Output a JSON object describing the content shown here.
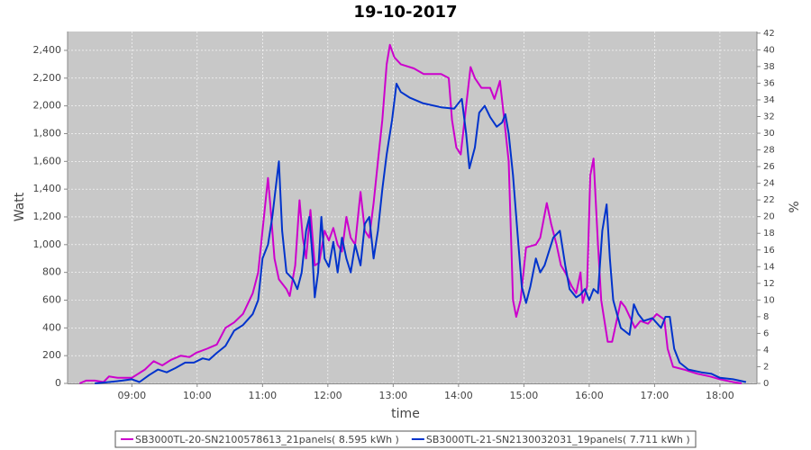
{
  "chart_data": {
    "type": "line",
    "title": "19-10-2017",
    "x_label": "time",
    "y_label": "Watt",
    "y2_label": "%",
    "xlim": [
      481,
      1114
    ],
    "xticks": [
      {
        "value": 540,
        "label": "09:00"
      },
      {
        "value": 600,
        "label": "10:00"
      },
      {
        "value": 660,
        "label": "11:00"
      },
      {
        "value": 720,
        "label": "12:00"
      },
      {
        "value": 780,
        "label": "13:00"
      },
      {
        "value": 840,
        "label": "14:00"
      },
      {
        "value": 900,
        "label": "15:00"
      },
      {
        "value": 960,
        "label": "16:00"
      },
      {
        "value": 1020,
        "label": "17:00"
      },
      {
        "value": 1080,
        "label": "18:00"
      }
    ],
    "ylim": [
      0,
      2536
    ],
    "yticks": [
      0,
      200,
      400,
      600,
      800,
      {
        "value": 1000,
        "label": "1,000"
      },
      {
        "value": 1200,
        "label": "1,200"
      },
      {
        "value": 1400,
        "label": "1,400"
      },
      {
        "value": 1600,
        "label": "1,600"
      },
      {
        "value": 1800,
        "label": "1,800"
      },
      {
        "value": 2000,
        "label": "2,000"
      },
      {
        "value": 2200,
        "label": "2,200"
      },
      {
        "value": 2400,
        "label": "2,400"
      }
    ],
    "y2lim": [
      0,
      42.2
    ],
    "y2ticks": [
      0,
      2,
      4,
      6,
      8,
      10,
      12,
      14,
      16,
      18,
      20,
      22,
      24,
      26,
      28,
      30,
      32,
      34,
      36,
      38,
      40,
      42
    ],
    "grid": true,
    "series": [
      {
        "name": "SB3000TL-20-SN2100578613_21panels( 8.595 kWh )",
        "color": "#cc00cc",
        "x": [
          492,
          498,
          506,
          514,
          519,
          527,
          540,
          552,
          560,
          568,
          576,
          585,
          593,
          599,
          609,
          618,
          626,
          634,
          642,
          651,
          656,
          660,
          665,
          667,
          671,
          675,
          682,
          685,
          690,
          694,
          697,
          700,
          704,
          708,
          712,
          717,
          721,
          725,
          729,
          733,
          737,
          741,
          745,
          750,
          754,
          758,
          762,
          766,
          770,
          774,
          777,
          781,
          787,
          799,
          808,
          824,
          831,
          834,
          838,
          842,
          847,
          851,
          855,
          861,
          869,
          873,
          878,
          882,
          886,
          890,
          893,
          897,
          902,
          911,
          915,
          921,
          925,
          930,
          934,
          938,
          944,
          948,
          952,
          954,
          958,
          961,
          964,
          968,
          971,
          977,
          981,
          989,
          993,
          1002,
          1007,
          1014,
          1022,
          1029,
          1032,
          1037,
          1047,
          1059,
          1071,
          1080,
          1092,
          1100
        ],
        "values": [
          0,
          20,
          20,
          10,
          50,
          40,
          40,
          100,
          160,
          130,
          170,
          200,
          190,
          220,
          250,
          280,
          400,
          440,
          500,
          650,
          800,
          1100,
          1480,
          1300,
          900,
          750,
          680,
          630,
          850,
          1320,
          1050,
          900,
          1250,
          850,
          870,
          1100,
          1030,
          1120,
          1000,
          950,
          1200,
          1050,
          1000,
          1380,
          1100,
          1050,
          1300,
          1600,
          1900,
          2300,
          2440,
          2350,
          2300,
          2270,
          2230,
          2230,
          2200,
          1900,
          1700,
          1650,
          2000,
          2280,
          2200,
          2130,
          2130,
          2050,
          2180,
          1900,
          1600,
          600,
          480,
          600,
          980,
          1000,
          1050,
          1300,
          1150,
          1000,
          850,
          800,
          700,
          650,
          800,
          580,
          700,
          1500,
          1620,
          1000,
          600,
          300,
          300,
          590,
          550,
          400,
          450,
          430,
          500,
          460,
          250,
          120,
          100,
          70,
          50,
          30,
          10,
          0
        ]
      },
      {
        "name": "SB3000TL-21-SN2130032031_19panels( 7.711 kWh )",
        "color": "#0033cc",
        "x": [
          506,
          519,
          531,
          540,
          547,
          556,
          564,
          572,
          580,
          589,
          597,
          605,
          611,
          618,
          626,
          634,
          642,
          651,
          656,
          660,
          665,
          669,
          672,
          675,
          678,
          682,
          688,
          692,
          696,
          700,
          703,
          706,
          708,
          711,
          714,
          717,
          721,
          725,
          729,
          733,
          737,
          741,
          745,
          750,
          754,
          758,
          762,
          766,
          770,
          774,
          779,
          783,
          787,
          795,
          807,
          824,
          836,
          843,
          847,
          850,
          855,
          859,
          864,
          869,
          875,
          880,
          883,
          886,
          890,
          894,
          898,
          902,
          906,
          911,
          915,
          919,
          927,
          933,
          938,
          942,
          948,
          952,
          956,
          960,
          964,
          968,
          972,
          976,
          979,
          982,
          989,
          997,
          1001,
          1005,
          1010,
          1018,
          1026,
          1030,
          1034,
          1038,
          1043,
          1051,
          1063,
          1072,
          1080,
          1092,
          1104
        ],
        "values": [
          0,
          10,
          20,
          30,
          10,
          60,
          100,
          80,
          110,
          150,
          150,
          180,
          170,
          220,
          270,
          380,
          420,
          500,
          600,
          900,
          1000,
          1200,
          1400,
          1600,
          1100,
          800,
          750,
          680,
          800,
          1100,
          1200,
          900,
          620,
          800,
          1200,
          900,
          840,
          1020,
          800,
          1050,
          900,
          800,
          1000,
          850,
          1150,
          1200,
          900,
          1100,
          1400,
          1650,
          1900,
          2160,
          2100,
          2060,
          2020,
          1990,
          1980,
          2050,
          1800,
          1550,
          1700,
          1950,
          2000,
          1920,
          1850,
          1880,
          1940,
          1800,
          1500,
          1100,
          700,
          580,
          700,
          900,
          800,
          850,
          1050,
          1100,
          850,
          680,
          620,
          640,
          680,
          600,
          680,
          650,
          1100,
          1290,
          900,
          600,
          400,
          350,
          570,
          500,
          450,
          470,
          400,
          480,
          480,
          250,
          150,
          100,
          80,
          70,
          40,
          30,
          10
        ]
      }
    ]
  }
}
